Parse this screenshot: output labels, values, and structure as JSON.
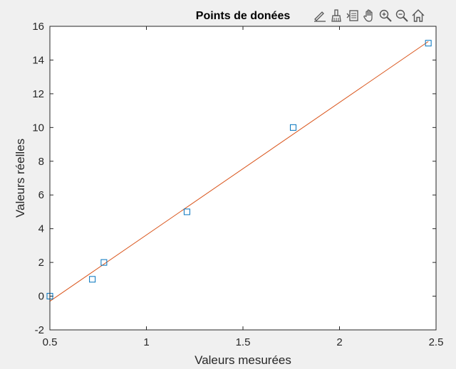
{
  "figure": {
    "background": "#f0f0f0",
    "axes_background": "#ffffff"
  },
  "toolbar": {
    "buttons": [
      {
        "name": "edit-plot-icon"
      },
      {
        "name": "brush-icon"
      },
      {
        "name": "data-cursor-icon"
      },
      {
        "name": "pan-icon"
      },
      {
        "name": "zoom-in-icon"
      },
      {
        "name": "zoom-out-icon"
      },
      {
        "name": "home-icon"
      }
    ]
  },
  "chart_data": {
    "type": "scatter",
    "title": "Points de donées",
    "xlabel": "Valeurs mesurées",
    "ylabel": "Valeurs réelles",
    "xlim": [
      0.5,
      2.5
    ],
    "ylim": [
      -2,
      16
    ],
    "xticks": [
      0.5,
      1,
      1.5,
      2,
      2.5
    ],
    "xtick_labels": [
      "0.5",
      "1",
      "1.5",
      "2",
      "2.5"
    ],
    "yticks": [
      -2,
      0,
      2,
      4,
      6,
      8,
      10,
      12,
      14,
      16
    ],
    "ytick_labels": [
      "-2",
      "0",
      "2",
      "4",
      "6",
      "8",
      "10",
      "12",
      "14",
      "16"
    ],
    "grid": false,
    "series": [
      {
        "type": "scatter",
        "marker": "square",
        "color": "#0072bd",
        "x": [
          0.5,
          0.72,
          0.78,
          1.21,
          1.76,
          2.46
        ],
        "y": [
          0,
          1,
          2,
          5,
          10,
          15
        ]
      },
      {
        "type": "line",
        "color": "#d95319",
        "x": [
          0.5,
          2.46
        ],
        "y": [
          -0.3,
          15.1
        ]
      }
    ]
  }
}
